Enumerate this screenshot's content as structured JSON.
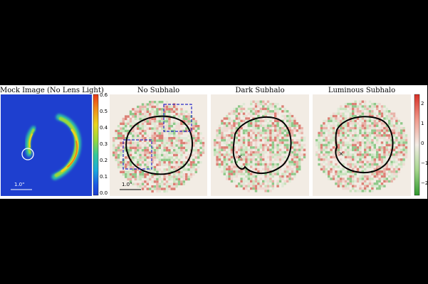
{
  "panels": [
    {
      "title": "Mock Image (No Lens Light)",
      "scale_label": "1.0\""
    },
    {
      "title": "No Subhalo",
      "scale_label": "1.0\""
    },
    {
      "title": "Dark Subhalo"
    },
    {
      "title": "Luminous Subhalo"
    }
  ],
  "colorbar_left": {
    "ticks": [
      "0.6",
      "0.5",
      "0.4",
      "0.3",
      "0.2",
      "0.1",
      "0.0"
    ],
    "colors": [
      "#e8381a",
      "#f08a1a",
      "#e9d51e",
      "#9ad83a",
      "#33c79a",
      "#1aa9dc",
      "#1d55e3",
      "#1e3fcf"
    ]
  },
  "colorbar_right": {
    "ticks": [
      "2",
      "1",
      "0",
      "−1",
      "−2"
    ],
    "colors": [
      "#d73027",
      "#f09a8c",
      "#f2ece4",
      "#a5d68c",
      "#2f9a2f"
    ]
  },
  "markers": {
    "subhalo": "×"
  },
  "colors": {
    "image_bg": "#1e3fcf",
    "residual_bg": "#f2ece4",
    "box_color": "#2a2ac8",
    "ring_color": "#ffffff",
    "curve_color": "#000000"
  }
}
